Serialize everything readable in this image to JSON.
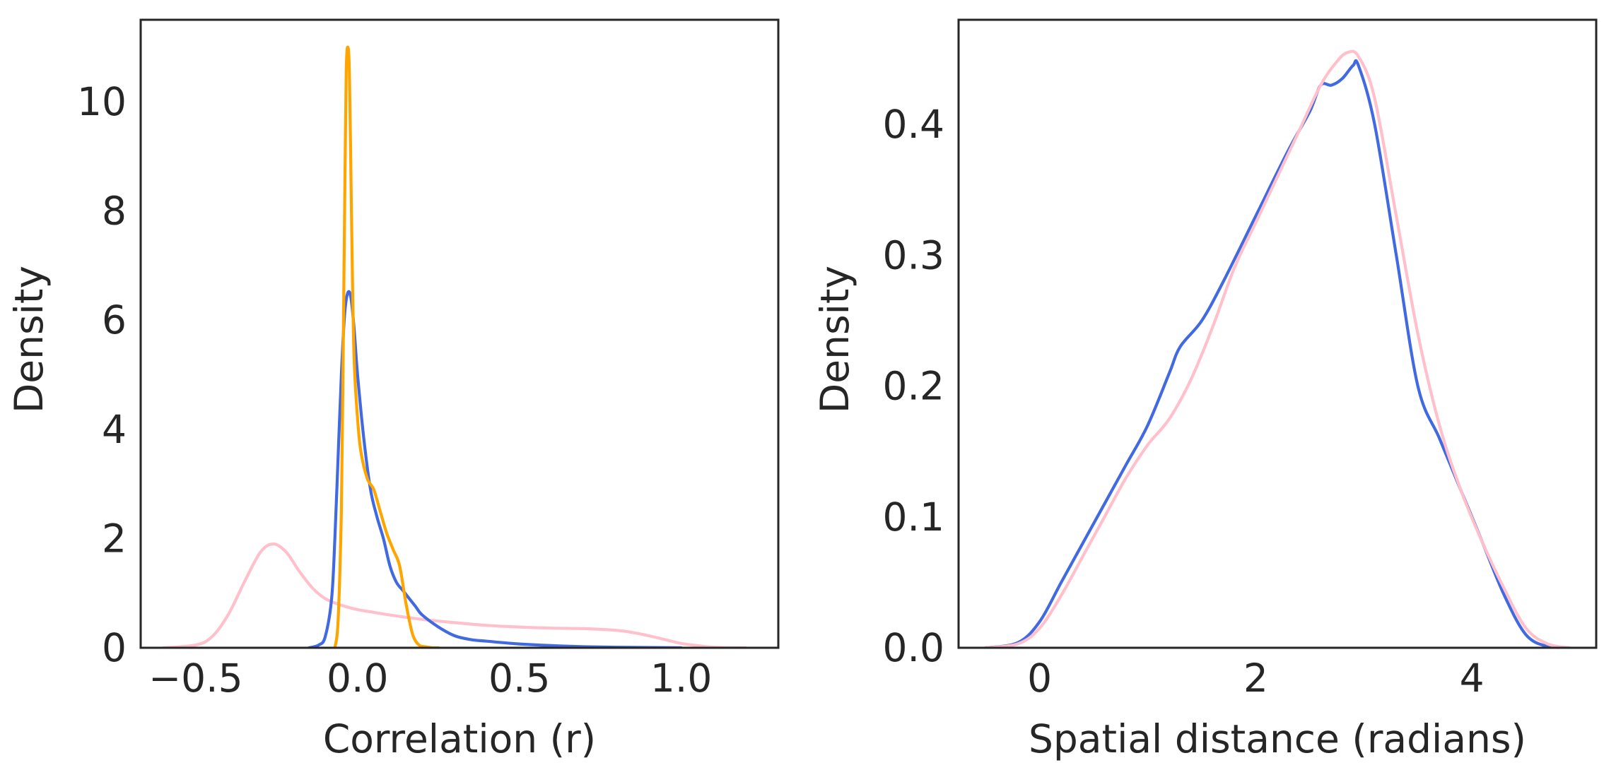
{
  "chart_data": [
    {
      "type": "line",
      "title": "",
      "xlabel": "Correlation (r)",
      "ylabel": "Density",
      "xlim": [
        -0.67,
        1.3
      ],
      "ylim": [
        0,
        11.5
      ],
      "xticks": [
        -0.5,
        0.0,
        0.5,
        1.0
      ],
      "xtick_labels": [
        "−0.5",
        "0.0",
        "0.5",
        "1.0"
      ],
      "yticks": [
        0,
        2,
        4,
        6,
        8,
        10
      ],
      "ytick_labels": [
        "0",
        "2",
        "4",
        "6",
        "8",
        "10"
      ],
      "grid": false,
      "legend": "none",
      "series": [
        {
          "color": "#ffc0cb",
          "x": [
            -0.6,
            -0.5,
            -0.45,
            -0.4,
            -0.35,
            -0.3,
            -0.26,
            -0.22,
            -0.18,
            -0.14,
            -0.1,
            -0.05,
            0.0,
            0.05,
            0.1,
            0.2,
            0.3,
            0.4,
            0.5,
            0.6,
            0.7,
            0.8,
            0.85,
            0.9,
            0.95,
            1.0,
            1.05,
            1.1,
            1.2
          ],
          "y": [
            0.0,
            0.05,
            0.2,
            0.6,
            1.2,
            1.75,
            1.9,
            1.75,
            1.4,
            1.1,
            0.9,
            0.78,
            0.7,
            0.65,
            0.6,
            0.52,
            0.46,
            0.41,
            0.38,
            0.36,
            0.35,
            0.32,
            0.28,
            0.22,
            0.15,
            0.08,
            0.04,
            0.01,
            0.0
          ]
        },
        {
          "color": "#4169e1",
          "x": [
            -0.15,
            -0.12,
            -0.1,
            -0.08,
            -0.07,
            -0.06,
            -0.05,
            -0.04,
            -0.03,
            -0.02,
            -0.01,
            0.0,
            0.02,
            0.04,
            0.06,
            0.08,
            0.1,
            0.12,
            0.14,
            0.16,
            0.18,
            0.2,
            0.25,
            0.3,
            0.35,
            0.4,
            0.5,
            0.6,
            0.7,
            0.8,
            0.9,
            1.0
          ],
          "y": [
            0.0,
            0.05,
            0.2,
            0.9,
            2.0,
            3.5,
            5.0,
            6.1,
            6.5,
            6.4,
            5.8,
            5.0,
            3.8,
            2.9,
            2.4,
            2.0,
            1.5,
            1.2,
            1.05,
            0.9,
            0.75,
            0.6,
            0.38,
            0.22,
            0.15,
            0.12,
            0.07,
            0.04,
            0.02,
            0.01,
            0.005,
            0.0
          ]
        },
        {
          "color": "#ffa500",
          "x": [
            -0.07,
            -0.06,
            -0.05,
            -0.045,
            -0.04,
            -0.035,
            -0.03,
            -0.025,
            -0.02,
            -0.015,
            -0.01,
            0.0,
            0.01,
            0.03,
            0.05,
            0.07,
            0.09,
            0.11,
            0.13,
            0.15,
            0.17,
            0.19,
            0.21,
            0.23,
            0.25
          ],
          "y": [
            0.0,
            0.5,
            2.5,
            5.0,
            8.0,
            10.5,
            11.0,
            10.5,
            8.5,
            6.5,
            5.2,
            4.2,
            3.6,
            3.1,
            2.9,
            2.5,
            2.1,
            1.8,
            1.5,
            0.8,
            0.25,
            0.05,
            0.02,
            0.0,
            0.0
          ]
        }
      ]
    },
    {
      "type": "line",
      "title": "",
      "xlabel": "Spatial distance (radians)",
      "ylabel": "Density",
      "xlim": [
        -0.75,
        5.15
      ],
      "ylim": [
        0.0,
        0.48
      ],
      "xticks": [
        0,
        2,
        4
      ],
      "xtick_labels": [
        "0",
        "2",
        "4"
      ],
      "yticks": [
        0.0,
        0.1,
        0.2,
        0.3,
        0.4
      ],
      "ytick_labels": [
        "0.0",
        "0.1",
        "0.2",
        "0.3",
        "0.4"
      ],
      "grid": false,
      "legend": "none",
      "series": [
        {
          "color": "#4169e1",
          "x": [
            -0.5,
            -0.2,
            0.0,
            0.2,
            0.4,
            0.6,
            0.8,
            1.0,
            1.2,
            1.3,
            1.5,
            1.7,
            2.0,
            2.3,
            2.5,
            2.6,
            2.7,
            2.8,
            2.9,
            2.95,
            3.1,
            3.3,
            3.5,
            3.7,
            3.9,
            4.1,
            4.3,
            4.5,
            4.7,
            4.9
          ],
          "y": [
            0.0,
            0.004,
            0.02,
            0.05,
            0.08,
            0.11,
            0.14,
            0.17,
            0.21,
            0.23,
            0.25,
            0.28,
            0.33,
            0.38,
            0.41,
            0.43,
            0.43,
            0.435,
            0.445,
            0.445,
            0.4,
            0.3,
            0.2,
            0.16,
            0.12,
            0.08,
            0.04,
            0.01,
            0.001,
            0.0
          ]
        },
        {
          "color": "#ffc0cb",
          "x": [
            -0.5,
            -0.2,
            0.0,
            0.2,
            0.4,
            0.6,
            0.8,
            1.0,
            1.2,
            1.4,
            1.6,
            1.8,
            2.0,
            2.2,
            2.4,
            2.6,
            2.75,
            2.85,
            2.95,
            3.1,
            3.3,
            3.5,
            3.7,
            3.9,
            4.1,
            4.3,
            4.5,
            4.7,
            4.9
          ],
          "y": [
            0.0,
            0.003,
            0.015,
            0.04,
            0.07,
            0.1,
            0.13,
            0.155,
            0.175,
            0.205,
            0.245,
            0.29,
            0.325,
            0.36,
            0.395,
            0.43,
            0.448,
            0.455,
            0.452,
            0.42,
            0.33,
            0.24,
            0.17,
            0.12,
            0.08,
            0.045,
            0.015,
            0.003,
            0.0
          ]
        }
      ]
    }
  ]
}
